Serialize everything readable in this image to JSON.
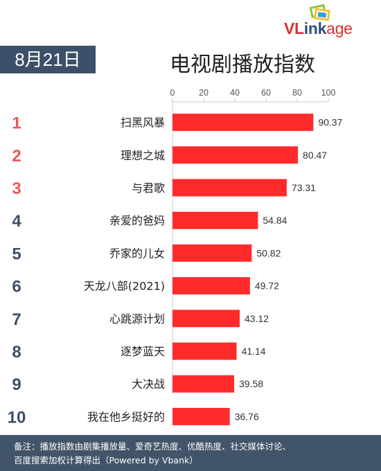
{
  "logo": {
    "part1": "VL",
    "part2": "ink",
    "part3": "age"
  },
  "date_label": "8月21日",
  "chart_data": {
    "type": "bar",
    "orientation": "horizontal",
    "title": "电视剧播放指数",
    "ranks": [
      "1",
      "2",
      "3",
      "4",
      "5",
      "6",
      "7",
      "8",
      "9",
      "10"
    ],
    "categories": [
      "扫黑风暴",
      "理想之城",
      "与君歌",
      "亲爱的爸妈",
      "乔家的儿女",
      "天龙八部(2021)",
      "心跳源计划",
      "逐梦蓝天",
      "大决战",
      "我在他乡挺好的"
    ],
    "values": [
      90.37,
      80.47,
      73.31,
      54.84,
      50.82,
      49.72,
      43.12,
      41.14,
      39.58,
      36.76
    ],
    "value_labels": [
      "90.37",
      "80.47",
      "73.31",
      "54.84",
      "50.82",
      "49.72",
      "43.12",
      "41.14",
      "39.58",
      "36.76"
    ],
    "xlim": [
      0,
      100
    ],
    "xticks": [
      0,
      20,
      40,
      60,
      80,
      100
    ],
    "xtick_labels": [
      "0",
      "20",
      "40",
      "60",
      "80",
      "100"
    ],
    "axis_position": "top",
    "grid": false,
    "colors": {
      "bar": "#ff2b2b",
      "rank_top3": "#f0555a",
      "rank_other": "#3d4e66"
    }
  },
  "footer": {
    "line1": "备注：播放指数由剧集播放量、爱奇艺热度、优酷热度、社交媒体讨论、",
    "line2": "百度搜索加权计算得出（Powered by Vbank）"
  }
}
